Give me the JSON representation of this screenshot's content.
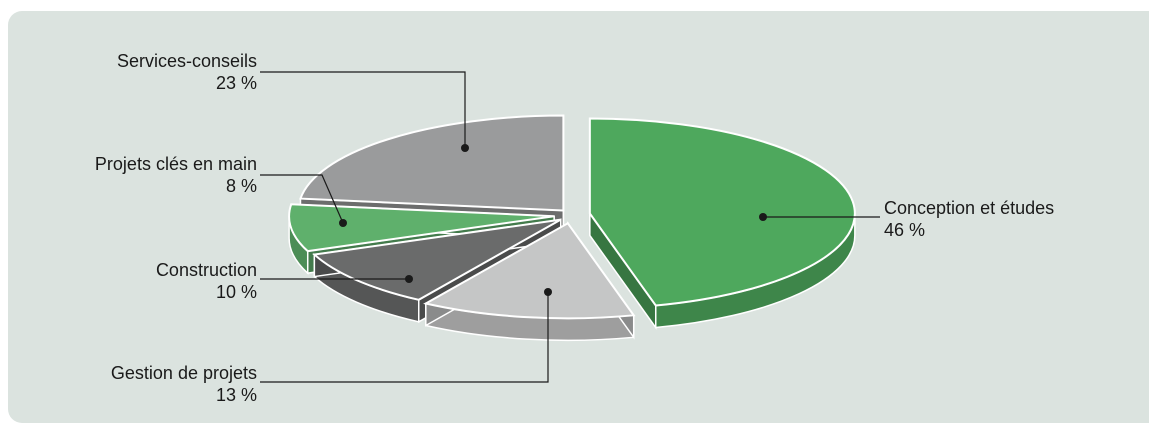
{
  "chart_data": {
    "type": "pie",
    "style": "exploded 3D",
    "slices": [
      {
        "label": "Conception et études",
        "value": 46,
        "value_label": "46 %",
        "color": "#4ea85d"
      },
      {
        "label": "Gestion de projets",
        "value": 13,
        "value_label": "13 %",
        "color": "#c5c6c6"
      },
      {
        "label": "Construction",
        "value": 10,
        "value_label": "10 %",
        "color": "#6a6b6b"
      },
      {
        "label": "Projets clés en main",
        "value": 8,
        "value_label": "8 %",
        "color": "#5fb06c"
      },
      {
        "label": "Services-conseils",
        "value": 23,
        "value_label": "23 %",
        "color": "#9a9b9c"
      }
    ],
    "background": "#dbe3df"
  }
}
